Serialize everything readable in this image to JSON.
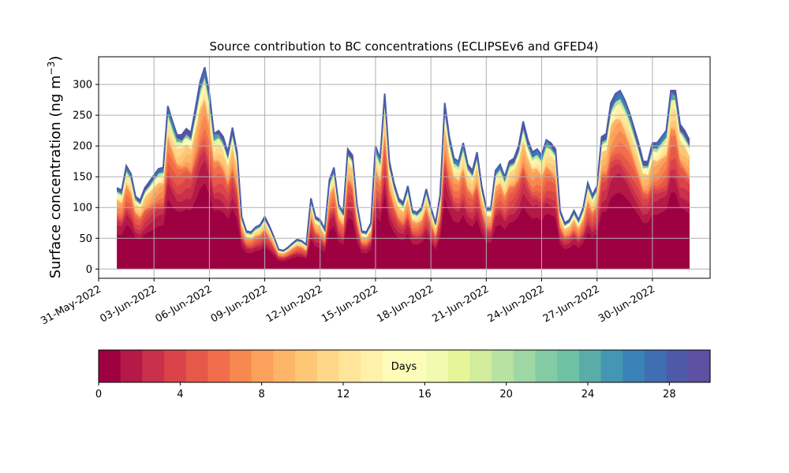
{
  "chart_data": {
    "type": "area",
    "title": "Source contribution to BC concentrations (ECLIPSEv6 and GFED4)",
    "ylabel": "Surface concentration (ng m",
    "ylabel_sup": "−3",
    "ylabel_close": ")",
    "xlabel": "",
    "ylim": [
      -15,
      345
    ],
    "xlim": [
      "2022-05-31T00:00",
      "2022-07-03T03:00"
    ],
    "yticks": [
      0,
      50,
      100,
      150,
      200,
      250,
      300
    ],
    "xticks": [
      "31-May-2022",
      "03-Jun-2022",
      "06-Jun-2022",
      "09-Jun-2022",
      "12-Jun-2022",
      "15-Jun-2022",
      "18-Jun-2022",
      "21-Jun-2022",
      "24-Jun-2022",
      "27-Jun-2022",
      "30-Jun-2022"
    ],
    "grid": true,
    "colorbar": {
      "label": "Days",
      "range": [
        0,
        30
      ],
      "ticks": [
        0,
        4,
        8,
        12,
        16,
        20,
        24,
        28
      ],
      "colormap": "Spectral",
      "colors": [
        "#9e0142",
        "#b41947",
        "#c9304c",
        "#da4349",
        "#e65848",
        "#f26d4b",
        "#f7884f",
        "#fba15b",
        "#fdb567",
        "#fdc776",
        "#fed788",
        "#fee59a",
        "#fff1a9",
        "#fffbb8",
        "#fbfdb9",
        "#f2fab0",
        "#e6f598",
        "#d0ec9c",
        "#b8e2a1",
        "#9ed6a4",
        "#82cba5",
        "#6fc1a4",
        "#5aaca9",
        "#4596b3",
        "#3a82b7",
        "#3f6fb2",
        "#4e5aa8",
        "#5e4fa2"
      ]
    },
    "x": [
      "2022-06-01T00:00",
      "2022-06-01T06:00",
      "2022-06-01T12:00",
      "2022-06-01T18:00",
      "2022-06-02T00:00",
      "2022-06-02T06:00",
      "2022-06-02T12:00",
      "2022-06-02T18:00",
      "2022-06-03T00:00",
      "2022-06-03T06:00",
      "2022-06-03T12:00",
      "2022-06-03T18:00",
      "2022-06-04T00:00",
      "2022-06-04T06:00",
      "2022-06-04T12:00",
      "2022-06-04T18:00",
      "2022-06-05T00:00",
      "2022-06-05T06:00",
      "2022-06-05T12:00",
      "2022-06-05T18:00",
      "2022-06-06T00:00",
      "2022-06-06T06:00",
      "2022-06-06T12:00",
      "2022-06-06T18:00",
      "2022-06-07T00:00",
      "2022-06-07T06:00",
      "2022-06-07T12:00",
      "2022-06-07T18:00",
      "2022-06-08T00:00",
      "2022-06-08T06:00",
      "2022-06-08T12:00",
      "2022-06-08T18:00",
      "2022-06-09T00:00",
      "2022-06-09T06:00",
      "2022-06-09T12:00",
      "2022-06-09T18:00",
      "2022-06-10T00:00",
      "2022-06-10T06:00",
      "2022-06-10T12:00",
      "2022-06-10T18:00",
      "2022-06-11T00:00",
      "2022-06-11T06:00",
      "2022-06-11T12:00",
      "2022-06-11T18:00",
      "2022-06-12T00:00",
      "2022-06-12T06:00",
      "2022-06-12T12:00",
      "2022-06-12T18:00",
      "2022-06-13T00:00",
      "2022-06-13T06:00",
      "2022-06-13T12:00",
      "2022-06-13T18:00",
      "2022-06-14T00:00",
      "2022-06-14T06:00",
      "2022-06-14T12:00",
      "2022-06-14T18:00",
      "2022-06-15T00:00",
      "2022-06-15T06:00",
      "2022-06-15T12:00",
      "2022-06-15T18:00",
      "2022-06-16T00:00",
      "2022-06-16T06:00",
      "2022-06-16T12:00",
      "2022-06-16T18:00",
      "2022-06-17T00:00",
      "2022-06-17T06:00",
      "2022-06-17T12:00",
      "2022-06-17T18:00",
      "2022-06-18T00:00",
      "2022-06-18T06:00",
      "2022-06-18T12:00",
      "2022-06-18T18:00",
      "2022-06-19T00:00",
      "2022-06-19T06:00",
      "2022-06-19T12:00",
      "2022-06-19T18:00",
      "2022-06-20T00:00",
      "2022-06-20T06:00",
      "2022-06-20T12:00",
      "2022-06-20T18:00",
      "2022-06-21T00:00",
      "2022-06-21T06:00",
      "2022-06-21T12:00",
      "2022-06-21T18:00",
      "2022-06-22T00:00",
      "2022-06-22T06:00",
      "2022-06-22T12:00",
      "2022-06-22T18:00",
      "2022-06-23T00:00",
      "2022-06-23T06:00",
      "2022-06-23T12:00",
      "2022-06-23T18:00",
      "2022-06-24T00:00",
      "2022-06-24T06:00",
      "2022-06-24T12:00",
      "2022-06-24T18:00",
      "2022-06-25T00:00",
      "2022-06-25T06:00",
      "2022-06-25T12:00",
      "2022-06-25T18:00",
      "2022-06-26T00:00",
      "2022-06-26T06:00",
      "2022-06-26T12:00",
      "2022-06-26T18:00",
      "2022-06-27T00:00",
      "2022-06-27T06:00",
      "2022-06-27T12:00",
      "2022-06-27T18:00",
      "2022-06-28T00:00",
      "2022-06-28T06:00",
      "2022-06-28T12:00",
      "2022-06-28T18:00",
      "2022-06-29T00:00",
      "2022-06-29T06:00",
      "2022-06-29T12:00",
      "2022-06-29T18:00",
      "2022-06-30T00:00",
      "2022-06-30T06:00",
      "2022-06-30T12:00",
      "2022-06-30T18:00",
      "2022-07-01T00:00",
      "2022-07-01T06:00",
      "2022-07-01T12:00",
      "2022-07-01T18:00",
      "2022-07-02T00:00"
    ],
    "total": [
      132,
      128,
      168,
      155,
      118,
      112,
      132,
      142,
      153,
      163,
      165,
      265,
      240,
      218,
      218,
      228,
      222,
      262,
      305,
      328,
      285,
      220,
      225,
      215,
      190,
      230,
      190,
      85,
      62,
      60,
      68,
      72,
      85,
      70,
      52,
      32,
      30,
      35,
      42,
      48,
      46,
      40,
      115,
      85,
      80,
      65,
      145,
      165,
      105,
      92,
      195,
      185,
      105,
      62,
      60,
      75,
      200,
      180,
      285,
      175,
      140,
      115,
      108,
      135,
      95,
      92,
      100,
      130,
      100,
      75,
      120,
      270,
      215,
      180,
      175,
      205,
      170,
      160,
      190,
      135,
      100,
      100,
      160,
      170,
      150,
      175,
      180,
      200,
      240,
      210,
      190,
      195,
      185,
      210,
      205,
      195,
      95,
      75,
      80,
      95,
      80,
      100,
      140,
      120,
      135,
      215,
      220,
      270,
      285,
      290,
      275,
      255,
      230,
      205,
      175,
      175,
      205,
      205,
      215,
      225,
      290,
      290,
      235,
      225,
      210
    ],
    "layer_boundaries_fraction": [
      0.0,
      0.43,
      0.52,
      0.58,
      0.63,
      0.68,
      0.72,
      0.76,
      0.795,
      0.825,
      0.855,
      0.88,
      0.9,
      0.915,
      0.93,
      0.94,
      0.95,
      0.958,
      0.965,
      0.971,
      0.976,
      0.981,
      0.985,
      0.989,
      0.992,
      0.995,
      0.997,
      0.999,
      1.0
    ]
  }
}
